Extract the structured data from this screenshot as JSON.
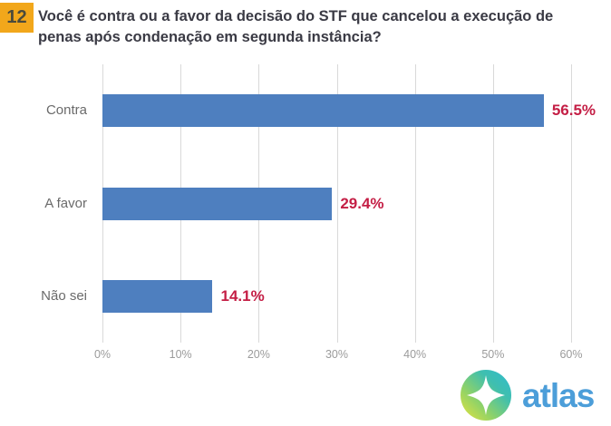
{
  "question": {
    "number": "12",
    "line1": "Você é contra ou a favor da decisão do STF que cancelou a execução de",
    "line2": "penas após condenação em segunda instância?"
  },
  "chart_data": {
    "type": "bar",
    "orientation": "horizontal",
    "categories": [
      "Contra",
      "A favor",
      "Não sei"
    ],
    "values": [
      56.5,
      29.4,
      14.1
    ],
    "value_labels": [
      "56.5%",
      "29.4%",
      "14.1%"
    ],
    "x_tick_labels": [
      "0%",
      "10%",
      "20%",
      "30%",
      "40%",
      "50%",
      "60%"
    ],
    "x_tick_values": [
      0,
      10,
      20,
      30,
      40,
      50,
      60
    ],
    "xlim": [
      0,
      60
    ],
    "grid": true,
    "legend": false,
    "bar_color": "#4E7FBF",
    "value_label_color": "#C41E45"
  },
  "branding": {
    "logo_text": "atlas",
    "logo_text_color": "#4C9ED9",
    "logo_gradient_start": "#E9E43B",
    "logo_gradient_end": "#30BBD1"
  },
  "colors": {
    "question_box_bg": "#F2A71B",
    "question_number_color": "#4A4A3C",
    "title_color": "#3A3A44",
    "category_label_color": "#6A6A6A",
    "axis_tick_color": "#9B9B9B",
    "gridline_color": "#D9D9D9"
  }
}
